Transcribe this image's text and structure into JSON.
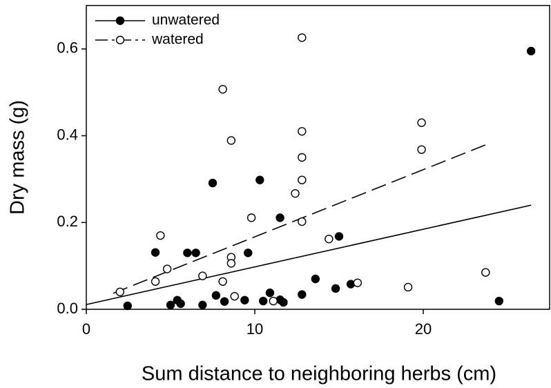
{
  "chart_data": {
    "type": "scatter",
    "xlabel": "Sum distance to neighboring herbs (cm)",
    "ylabel": "Dry mass (g)",
    "xlim": [
      0,
      27.5
    ],
    "ylim": [
      0,
      0.7
    ],
    "xticks": [
      0,
      10,
      20
    ],
    "yticks": [
      {
        "value": 0,
        "label": "0.0"
      },
      0.2,
      0.4,
      0.6
    ],
    "grid": false,
    "legend": "upper left",
    "series": [
      {
        "name": "unwatered",
        "color": "#000000",
        "fill": "#000000",
        "dash": "solid",
        "x": [
          2.45,
          4.1,
          5.0,
          5.4,
          5.6,
          6.0,
          6.5,
          6.9,
          7.5,
          7.7,
          8.2,
          9.4,
          9.6,
          10.3,
          10.5,
          10.9,
          11.5,
          11.5,
          11.7,
          12.8,
          13.6,
          14.8,
          15.0,
          15.7,
          24.5,
          26.4
        ],
        "values": [
          0.008,
          0.131,
          0.01,
          0.021,
          0.013,
          0.13,
          0.13,
          0.01,
          0.291,
          0.032,
          0.018,
          0.021,
          0.13,
          0.298,
          0.019,
          0.038,
          0.211,
          0.022,
          0.016,
          0.034,
          0.07,
          0.048,
          0.168,
          0.058,
          0.019,
          0.595
        ],
        "fit": {
          "x": [
            0,
            26.4
          ],
          "y": [
            0.011,
            0.24
          ]
        }
      },
      {
        "name": "watered",
        "color": "#000000",
        "fill": "#ffffff",
        "dash": "dashed",
        "x": [
          2.0,
          4.1,
          4.4,
          4.8,
          6.9,
          8.1,
          8.1,
          8.6,
          8.6,
          8.6,
          8.8,
          9.8,
          11.1,
          12.4,
          12.8,
          12.8,
          12.8,
          12.8,
          12.8,
          14.4,
          16.1,
          19.1,
          19.9,
          19.9,
          23.7
        ],
        "values": [
          0.04,
          0.064,
          0.17,
          0.093,
          0.077,
          0.507,
          0.064,
          0.389,
          0.12,
          0.106,
          0.03,
          0.211,
          0.019,
          0.267,
          0.626,
          0.41,
          0.35,
          0.298,
          0.202,
          0.162,
          0.061,
          0.051,
          0.43,
          0.368,
          0.085
        ],
        "fit": {
          "x": [
            1.6,
            23.7
          ],
          "y": [
            0.037,
            0.379
          ]
        }
      }
    ]
  }
}
